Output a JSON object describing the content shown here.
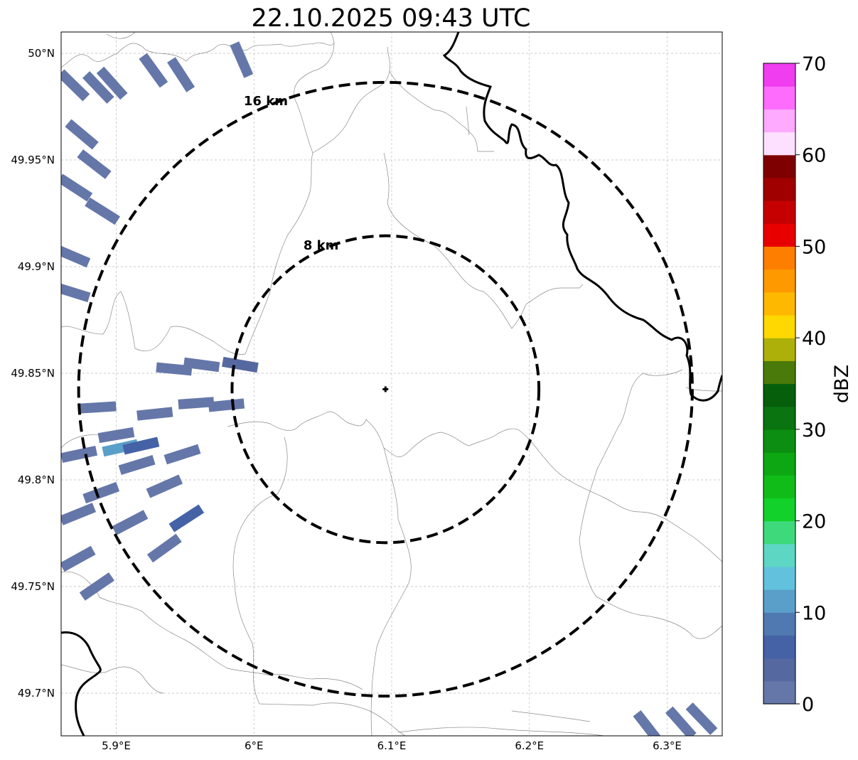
{
  "title": "22.10.2025 09:43 UTC",
  "radar_site": {
    "lon": 6.0955,
    "lat": 49.8425
  },
  "chart_data": {
    "type": "radar-reflectivity-map",
    "title": "22.10.2025 09:43 UTC",
    "extent": {
      "lon": [
        5.86,
        6.34
      ],
      "lat": [
        49.68,
        50.01
      ]
    },
    "xticks": [
      {
        "value": 5.9,
        "label": "5.9°E"
      },
      {
        "value": 6.0,
        "label": "6°E"
      },
      {
        "value": 6.1,
        "label": "6.1°E"
      },
      {
        "value": 6.2,
        "label": "6.2°E"
      },
      {
        "value": 6.3,
        "label": "6.3°E"
      }
    ],
    "yticks": [
      {
        "value": 50.0,
        "label": "50°N"
      },
      {
        "value": 49.95,
        "label": "49.95°N"
      },
      {
        "value": 49.9,
        "label": "49.9°N"
      },
      {
        "value": 49.85,
        "label": "49.85°N"
      },
      {
        "value": 49.8,
        "label": "49.8°N"
      },
      {
        "value": 49.75,
        "label": "49.75°N"
      },
      {
        "value": 49.7,
        "label": "49.7°N"
      }
    ],
    "grid": true,
    "range_rings": [
      {
        "radius_km": 8,
        "label": "8 km"
      },
      {
        "radius_km": 16,
        "label": "16 km"
      }
    ],
    "colorbar": {
      "label": "dBZ",
      "min": 0,
      "max": 70,
      "step": 2.5,
      "ticks": [
        0,
        10,
        20,
        30,
        40,
        50,
        60,
        70
      ],
      "colors": [
        "#6577a9",
        "#5668a0",
        "#4562a6",
        "#4f79b0",
        "#5a9fc9",
        "#62c1dd",
        "#5dd6c4",
        "#3dd97a",
        "#12d12a",
        "#10bd18",
        "#0ea714",
        "#0c8e12",
        "#0a7410",
        "#065f0b",
        "#4a7a0a",
        "#aeb00a",
        "#fed800",
        "#feb800",
        "#fe9a00",
        "#fe7e00",
        "#e80000",
        "#c60000",
        "#a00000",
        "#7f0000",
        "#fde0ff",
        "#fdaaff",
        "#fd6cfd",
        "#f03df0"
      ]
    },
    "echoes": [
      {
        "lon": 5.875,
        "lat": 49.962,
        "dbz": 1
      },
      {
        "lon": 5.869,
        "lat": 49.985,
        "dbz": 1
      },
      {
        "lon": 5.887,
        "lat": 49.984,
        "dbz": 1
      },
      {
        "lon": 5.884,
        "lat": 49.948,
        "dbz": 1
      },
      {
        "lon": 5.87,
        "lat": 49.937,
        "dbz": 1
      },
      {
        "lon": 5.868,
        "lat": 49.905,
        "dbz": 1
      },
      {
        "lon": 5.868,
        "lat": 49.888,
        "dbz": 1
      },
      {
        "lon": 5.89,
        "lat": 49.926,
        "dbz": 1
      },
      {
        "lon": 5.897,
        "lat": 49.986,
        "dbz": 1
      },
      {
        "lon": 5.9,
        "lat": 49.821,
        "dbz": 2
      },
      {
        "lon": 5.915,
        "lat": 49.807,
        "dbz": 1
      },
      {
        "lon": 5.935,
        "lat": 49.797,
        "dbz": 1
      },
      {
        "lon": 5.948,
        "lat": 49.812,
        "dbz": 1
      },
      {
        "lon": 5.928,
        "lat": 49.831,
        "dbz": 1
      },
      {
        "lon": 5.958,
        "lat": 49.836,
        "dbz": 1
      },
      {
        "lon": 5.887,
        "lat": 49.834,
        "dbz": 1
      },
      {
        "lon": 5.889,
        "lat": 49.794,
        "dbz": 1
      },
      {
        "lon": 5.91,
        "lat": 49.78,
        "dbz": 1
      },
      {
        "lon": 5.935,
        "lat": 49.768,
        "dbz": 1
      },
      {
        "lon": 5.951,
        "lat": 49.782,
        "dbz": 5
      },
      {
        "lon": 5.903,
        "lat": 49.815,
        "dbz": 11
      },
      {
        "lon": 5.918,
        "lat": 49.816,
        "dbz": 6
      },
      {
        "lon": 5.873,
        "lat": 49.812,
        "dbz": 1
      },
      {
        "lon": 5.872,
        "lat": 49.784,
        "dbz": 1
      },
      {
        "lon": 5.872,
        "lat": 49.763,
        "dbz": 1
      },
      {
        "lon": 5.886,
        "lat": 49.75,
        "dbz": 1
      },
      {
        "lon": 5.962,
        "lat": 49.854,
        "dbz": 1
      },
      {
        "lon": 5.99,
        "lat": 49.854,
        "dbz": 3
      },
      {
        "lon": 5.942,
        "lat": 49.852,
        "dbz": 1
      },
      {
        "lon": 5.98,
        "lat": 49.835,
        "dbz": 1
      },
      {
        "lon": 5.947,
        "lat": 49.99,
        "dbz": 1
      },
      {
        "lon": 5.927,
        "lat": 49.992,
        "dbz": 1
      },
      {
        "lon": 5.991,
        "lat": 49.997,
        "dbz": 1
      },
      {
        "lon": 6.286,
        "lat": 49.684,
        "dbz": 2
      },
      {
        "lon": 6.31,
        "lat": 49.686,
        "dbz": 1
      },
      {
        "lon": 6.325,
        "lat": 49.688,
        "dbz": 1
      }
    ]
  }
}
